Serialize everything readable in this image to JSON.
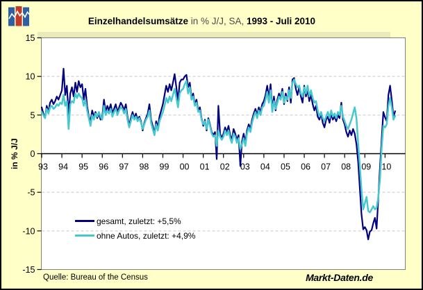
{
  "title": {
    "part1": "Einzelhandelsumsätze",
    "part2": " in % J/J, SA, ",
    "part3": "1993 - Juli 2010"
  },
  "y_axis": {
    "label": "in % J/J",
    "ticks": [
      15,
      10,
      5,
      0,
      -5,
      -10,
      -15
    ]
  },
  "x_axis": {
    "ticks": [
      "93",
      "94",
      "95",
      "96",
      "97",
      "98",
      "99",
      "00",
      "01",
      "02",
      "03",
      "04",
      "05",
      "06",
      "07",
      "08",
      "09",
      "10"
    ]
  },
  "legend": [
    {
      "label": "gesamt, zuletzt: +5,5%",
      "color": "#000080"
    },
    {
      "label": "ohne Autos, zuletzt: +4,9%",
      "color": "#45C8CE"
    }
  ],
  "footer": {
    "source": "Quelle: Bureau of the Census",
    "watermark": "Markt-Daten.de"
  },
  "colors": {
    "background": "#FFFFC8",
    "plot_background": "#FFFFFF",
    "plot_border": "#808080",
    "gridline": "#C8C8C8",
    "axis": "#000000",
    "series_gesamt": "#000080",
    "series_ohne_autos": "#45C8CE",
    "logo_blue": "#2E5FA3",
    "logo_red": "#C23B2A"
  },
  "chart_data": {
    "type": "line",
    "title": "Einzelhandelsumsätze in % J/J, SA, 1993 - Juli 2010",
    "xlabel": "",
    "ylabel": "in % J/J",
    "ylim": [
      -15,
      15
    ],
    "x_start": "1993-01",
    "x_end": "2010-07",
    "frequency": "monthly",
    "grid": "dashed horizontal at -10, -5, 5, 10; solid axis at 0",
    "legend_position": "inside lower-left",
    "series": [
      {
        "name": "gesamt, zuletzt: +5,5%",
        "color": "#000080",
        "values": [
          6.0,
          5.2,
          4.6,
          6.2,
          5.4,
          6.6,
          7.0,
          6.4,
          6.8,
          7.4,
          7.0,
          7.6,
          8.2,
          11.0,
          7.6,
          8.8,
          5.0,
          7.8,
          8.6,
          7.4,
          9.2,
          8.0,
          9.4,
          8.6,
          9.0,
          7.0,
          8.4,
          6.2,
          4.8,
          4.2,
          5.6,
          4.8,
          5.4,
          4.6,
          5.2,
          4.4,
          4.8,
          7.0,
          5.4,
          6.2,
          5.6,
          6.4,
          5.2,
          5.8,
          6.4,
          5.4,
          6.0,
          6.6,
          6.2,
          5.6,
          6.4,
          4.8,
          3.6,
          4.6,
          5.4,
          4.6,
          5.2,
          4.4,
          4.8,
          4.2,
          3.0,
          4.0,
          4.6,
          5.2,
          6.4,
          4.4,
          3.6,
          2.6,
          4.2,
          3.4,
          4.8,
          5.6,
          6.4,
          7.6,
          8.8,
          8.0,
          9.0,
          8.2,
          9.2,
          10.3,
          8.6,
          6.8,
          9.2,
          9.6,
          9.6,
          10.0,
          10.2,
          8.6,
          9.2,
          7.2,
          7.8,
          6.4,
          7.0,
          5.6,
          6.0,
          4.6,
          3.6,
          4.4,
          3.0,
          4.6,
          3.8,
          2.8,
          2.4,
          2.8,
          -0.7,
          6.2,
          2.6,
          2.0,
          2.6,
          3.4,
          2.8,
          3.6,
          2.4,
          1.8,
          3.2,
          2.6,
          1.8,
          2.4,
          -1.6,
          1.6,
          2.6,
          1.4,
          3.0,
          3.8,
          3.2,
          4.4,
          5.2,
          5.8,
          5.0,
          6.0,
          5.4,
          6.4,
          6.8,
          7.6,
          8.8,
          7.2,
          9.0,
          5.8,
          7.4,
          5.6,
          7.0,
          7.8,
          7.2,
          8.4,
          6.4,
          7.8,
          6.8,
          8.6,
          6.6,
          9.6,
          9.8,
          8.4,
          7.6,
          8.6,
          7.4,
          6.6,
          8.8,
          7.4,
          8.2,
          6.8,
          7.6,
          6.4,
          5.6,
          6.2,
          4.8,
          4.4,
          5.2,
          4.0,
          3.4,
          4.4,
          4.8,
          4.0,
          5.2,
          4.4,
          4.8,
          4.2,
          5.0,
          4.6,
          6.6,
          4.4,
          3.8,
          2.8,
          2.2,
          3.0,
          2.4,
          3.2,
          2.6,
          1.2,
          -1.0,
          -4.4,
          -7.8,
          -9.8,
          -9.5,
          -9.9,
          -11.1,
          -10.1,
          -9.9,
          -9.0,
          -8.3,
          -9.7,
          -5.7,
          -1.7,
          1.9,
          5.4,
          4.7,
          4.2,
          7.6,
          8.8,
          6.9,
          4.8,
          5.5
        ]
      },
      {
        "name": "ohne Autos, zuletzt: +4,9%",
        "color": "#45C8CE",
        "values": [
          5.4,
          5.0,
          4.6,
          5.8,
          5.2,
          6.0,
          6.2,
          5.8,
          6.0,
          6.4,
          6.2,
          6.6,
          6.4,
          7.6,
          6.2,
          6.8,
          3.2,
          6.4,
          6.8,
          6.6,
          7.8,
          7.2,
          7.8,
          7.4,
          7.2,
          6.2,
          7.0,
          5.6,
          4.6,
          3.6,
          5.0,
          4.4,
          5.2,
          4.8,
          5.4,
          4.8,
          4.4,
          6.2,
          5.0,
          5.6,
          5.2,
          5.8,
          4.8,
          5.4,
          5.8,
          5.0,
          5.6,
          6.0,
          5.8,
          5.2,
          5.8,
          4.4,
          3.4,
          4.2,
          5.0,
          4.4,
          4.8,
          4.2,
          4.6,
          4.0,
          3.2,
          3.8,
          4.4,
          4.8,
          5.6,
          4.0,
          3.2,
          2.4,
          3.8,
          3.0,
          4.2,
          4.8,
          5.4,
          6.2,
          7.2,
          6.6,
          7.4,
          6.8,
          7.6,
          8.4,
          7.2,
          6.0,
          7.8,
          8.2,
          8.4,
          9.0,
          9.4,
          7.8,
          8.6,
          7.0,
          7.4,
          6.2,
          6.6,
          5.4,
          5.6,
          4.4,
          3.8,
          4.2,
          3.2,
          4.4,
          3.6,
          2.6,
          2.2,
          2.4,
          1.0,
          3.0,
          2.2,
          1.8,
          2.2,
          3.0,
          2.4,
          3.0,
          2.0,
          1.4,
          2.6,
          2.2,
          1.4,
          2.0,
          0.6,
          1.2,
          2.0,
          1.0,
          2.6,
          3.4,
          2.8,
          4.0,
          4.8,
          5.4,
          4.6,
          5.6,
          5.0,
          6.0,
          6.2,
          7.0,
          8.0,
          6.6,
          8.2,
          5.4,
          6.8,
          5.8,
          6.6,
          7.4,
          7.0,
          8.0,
          6.6,
          7.4,
          7.0,
          8.2,
          7.2,
          9.2,
          9.6,
          9.0,
          8.6,
          8.8,
          7.8,
          7.4,
          8.6,
          7.8,
          8.8,
          7.4,
          8.2,
          7.2,
          6.6,
          6.8,
          5.6,
          4.8,
          5.4,
          4.6,
          4.2,
          4.8,
          5.4,
          4.6,
          5.6,
          4.8,
          5.2,
          4.6,
          5.4,
          5.0,
          6.2,
          4.8,
          4.2,
          3.6,
          3.2,
          3.8,
          4.4,
          5.2,
          6.0,
          4.6,
          1.4,
          -1.6,
          -4.6,
          -7.2,
          -6.4,
          -5.6,
          -7.4,
          -7.6,
          -7.2,
          -6.8,
          -7.2,
          -7.0,
          -5.6,
          -3.2,
          0.8,
          3.6,
          3.4,
          3.8,
          6.2,
          7.2,
          6.0,
          4.4,
          4.9
        ]
      }
    ]
  }
}
